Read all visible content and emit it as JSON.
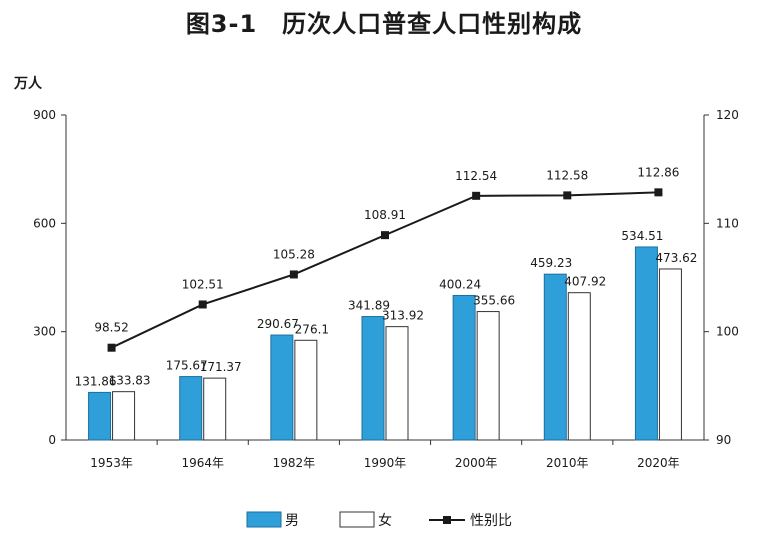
{
  "chart_data": {
    "type": "bar+line",
    "title": "图3-1　历次人口普查人口性别构成",
    "ylabel_left": "万人",
    "categories": [
      "1953年",
      "1964年",
      "1982年",
      "1990年",
      "2000年",
      "2010年",
      "2020年"
    ],
    "series": [
      {
        "name": "男",
        "type": "bar",
        "axis": "left",
        "color": "#2e9fd8",
        "values": [
          131.86,
          175.67,
          290.67,
          341.89,
          400.24,
          459.23,
          534.51
        ],
        "labels": [
          "131.86",
          "175.67",
          "290.67",
          "341.89",
          "400.24",
          "459.23",
          "534.51"
        ]
      },
      {
        "name": "女",
        "type": "bar",
        "axis": "left",
        "color": "#ffffff",
        "values": [
          133.83,
          171.37,
          276.1,
          313.92,
          355.66,
          407.92,
          473.62
        ],
        "labels": [
          "133.83",
          "171.37",
          "276.1",
          "313.92",
          "355.66",
          "407.92",
          "473.62"
        ]
      },
      {
        "name": "性别比",
        "type": "line",
        "axis": "right",
        "color": "#1a1a1a",
        "values": [
          98.52,
          102.51,
          105.28,
          108.91,
          112.54,
          112.58,
          112.86
        ],
        "labels": [
          "98.52",
          "102.51",
          "105.28",
          "108.91",
          "112.54",
          "112.58",
          "112.86"
        ]
      }
    ],
    "ylim_left": [
      0,
      900
    ],
    "yticks_left": [
      "0",
      "300",
      "600",
      "900"
    ],
    "ylim_right": [
      90,
      120
    ],
    "yticks_right": [
      "90",
      "100",
      "110",
      "120"
    ],
    "legend": [
      "男",
      "女",
      "性别比"
    ],
    "legend_position": "bottom",
    "grid": false
  }
}
